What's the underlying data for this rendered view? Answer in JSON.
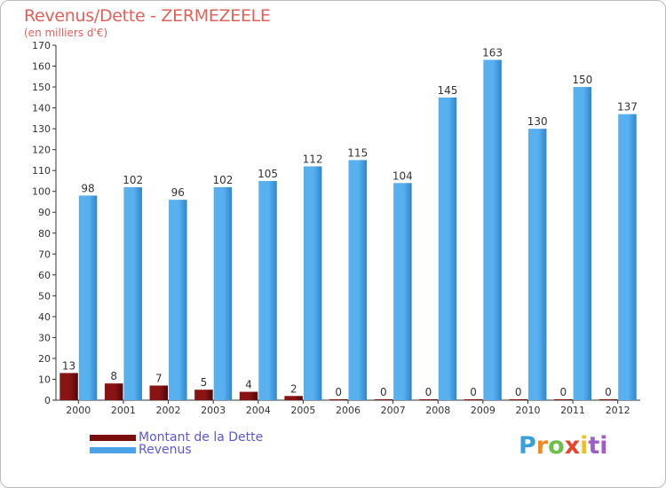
{
  "chart_data": {
    "type": "bar",
    "title": "Revenus/Dette - ZERMEZEELE",
    "subtitle": "(en milliers d'€)",
    "categories": [
      "2000",
      "2001",
      "2002",
      "2003",
      "2004",
      "2005",
      "2006",
      "2007",
      "2008",
      "2009",
      "2010",
      "2011",
      "2012"
    ],
    "series": [
      {
        "name": "Montant de la Dette",
        "color": "#7a0e0e",
        "values": [
          13,
          8,
          7,
          5,
          4,
          2,
          0,
          0,
          0,
          0,
          0,
          0,
          0
        ]
      },
      {
        "name": "Revenus",
        "color": "#4aa3e6",
        "values": [
          98,
          102,
          96,
          102,
          105,
          112,
          115,
          104,
          145,
          163,
          130,
          150,
          137
        ]
      }
    ],
    "ylim": [
      0,
      170
    ],
    "yticks": [
      0,
      10,
      20,
      30,
      40,
      50,
      60,
      70,
      80,
      90,
      100,
      110,
      120,
      130,
      140,
      150,
      160,
      170
    ],
    "grid": false,
    "legend_position": "bottom-left"
  },
  "logo": {
    "text": "Proxiti"
  }
}
